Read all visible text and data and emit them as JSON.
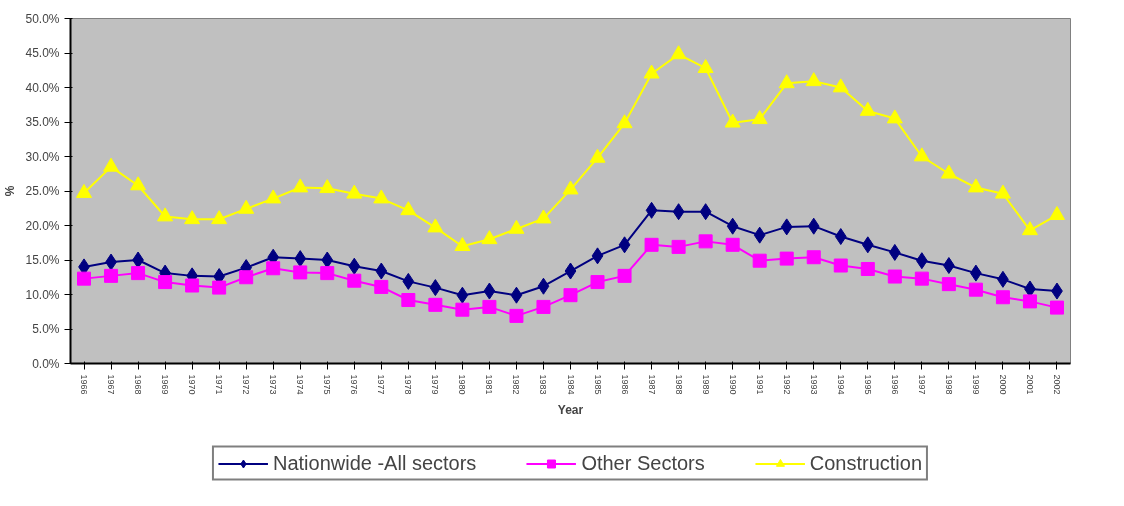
{
  "chart_data": {
    "type": "line",
    "xlabel": "Year",
    "ylabel": "%",
    "categories": [
      "1966",
      "1967",
      "1968",
      "1969",
      "1970",
      "1971",
      "1972",
      "1973",
      "1974",
      "1975",
      "1976",
      "1977",
      "1978",
      "1979",
      "1980",
      "1981",
      "1982",
      "1983",
      "1984",
      "1985",
      "1986",
      "1987",
      "1988",
      "1989",
      "1990",
      "1991",
      "1992",
      "1993",
      "1994",
      "1995",
      "1996",
      "1997",
      "1998",
      "1999",
      "2000",
      "2001",
      "2002"
    ],
    "ylim": [
      0,
      50
    ],
    "yticks": [
      {
        "value": 0,
        "label": "0.0%"
      },
      {
        "value": 5,
        "label": "5.0%"
      },
      {
        "value": 10,
        "label": "10.0%"
      },
      {
        "value": 15,
        "label": "15.0%"
      },
      {
        "value": 20,
        "label": "20.0%"
      },
      {
        "value": 25,
        "label": "25.0%"
      },
      {
        "value": 30,
        "label": "30.0%"
      },
      {
        "value": 35,
        "label": "35.0%"
      },
      {
        "value": 40,
        "label": "40.0%"
      },
      {
        "value": 45,
        "label": "45.0%"
      },
      {
        "value": 50,
        "label": "50.0%"
      }
    ],
    "grid": false,
    "legend": "bottom",
    "line_style": "solid",
    "series": [
      {
        "name": "Nationwide -All sectors",
        "color": "#000080",
        "marker": "diamond",
        "values": [
          14.0,
          14.7,
          15.0,
          13.1,
          12.7,
          12.6,
          13.9,
          15.4,
          15.2,
          15.0,
          14.1,
          13.4,
          11.9,
          11.0,
          9.9,
          10.5,
          9.9,
          11.2,
          13.4,
          15.6,
          17.2,
          22.2,
          22.0,
          22.0,
          19.9,
          18.6,
          19.8,
          19.9,
          18.4,
          17.2,
          16.1,
          14.9,
          14.2,
          13.1,
          12.2,
          10.8,
          10.5
        ]
      },
      {
        "name": "Other Sectors",
        "color": "#ff00ff",
        "marker": "square",
        "values": [
          12.3,
          12.7,
          13.1,
          11.8,
          11.3,
          11.0,
          12.5,
          13.8,
          13.2,
          13.1,
          12.0,
          11.1,
          9.2,
          8.5,
          7.8,
          8.2,
          6.9,
          8.2,
          9.9,
          11.8,
          12.7,
          17.2,
          16.9,
          17.7,
          17.2,
          14.9,
          15.2,
          15.4,
          14.2,
          13.7,
          12.6,
          12.3,
          11.5,
          10.7,
          9.6,
          9.0,
          8.1
        ]
      },
      {
        "name": "Construction",
        "color": "#ffff00",
        "marker": "triangle",
        "values": [
          24.7,
          28.5,
          25.8,
          21.3,
          20.9,
          20.9,
          22.4,
          23.9,
          25.5,
          25.4,
          24.6,
          23.9,
          22.2,
          19.7,
          17.0,
          18.0,
          19.5,
          21.0,
          25.2,
          29.8,
          34.8,
          42.0,
          44.8,
          42.8,
          34.9,
          35.4,
          40.6,
          40.9,
          40.0,
          36.6,
          35.5,
          30.0,
          27.5,
          25.5,
          24.6,
          19.3,
          21.5
        ]
      }
    ]
  }
}
